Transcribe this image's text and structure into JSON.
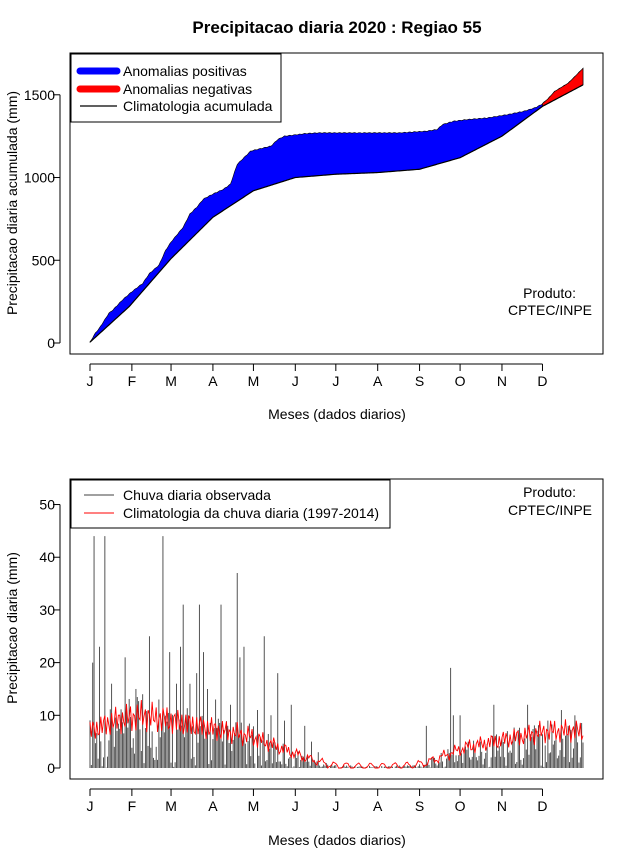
{
  "title": "Precipitacao diaria 2020 : Regiao 55",
  "chart_data": [
    {
      "type": "area",
      "id": "accumulated",
      "xlabel": "Meses (dados diarios)",
      "ylabel": "Precipitacao diaria acumulada (mm)",
      "months": [
        "J",
        "F",
        "M",
        "A",
        "M",
        "J",
        "J",
        "A",
        "S",
        "O",
        "N",
        "D"
      ],
      "month_start_days": [
        1,
        32,
        61,
        92,
        122,
        153,
        183,
        214,
        245,
        275,
        306,
        336
      ],
      "xlim": [
        1,
        366
      ],
      "ylim": [
        0,
        1680
      ],
      "yticks": [
        0,
        500,
        1000,
        1500
      ],
      "legend": {
        "position": "top-left",
        "entries": [
          "Anomalias positivas",
          "Anomalias negativas",
          "Climatologia acumulada"
        ],
        "colors": [
          "#0000ff",
          "#ff0000",
          "#000000"
        ]
      },
      "annotation": [
        "Produto:",
        "CPTEC/INPE"
      ],
      "observed_cumulative_anchors": {
        "day": [
          1,
          5,
          8,
          15,
          18,
          25,
          32,
          40,
          45,
          52,
          57,
          61,
          70,
          75,
          80,
          85,
          92,
          100,
          105,
          110,
          115,
          120,
          125,
          130,
          135,
          140,
          145,
          150,
          155,
          160,
          170,
          200,
          230,
          250,
          258,
          262,
          270,
          280,
          295,
          310,
          322,
          330,
          335,
          340,
          345,
          355,
          360,
          366
        ],
        "value": [
          5,
          60,
          90,
          180,
          200,
          260,
          310,
          360,
          420,
          470,
          560,
          610,
          700,
          780,
          820,
          870,
          900,
          930,
          960,
          1080,
          1120,
          1160,
          1170,
          1180,
          1190,
          1230,
          1250,
          1255,
          1260,
          1265,
          1270,
          1270,
          1270,
          1280,
          1290,
          1320,
          1340,
          1350,
          1360,
          1380,
          1400,
          1420,
          1440,
          1475,
          1520,
          1570,
          1610,
          1660
        ]
      },
      "climatology_cumulative_anchors": {
        "day": [
          1,
          30,
          61,
          92,
          122,
          153,
          183,
          214,
          245,
          275,
          306,
          336,
          366
        ],
        "value": [
          5,
          220,
          510,
          760,
          920,
          1000,
          1020,
          1030,
          1050,
          1120,
          1250,
          1430,
          1560
        ]
      }
    },
    {
      "type": "bar",
      "id": "daily",
      "xlabel": "Meses (dados diarios)",
      "ylabel": "Precipitacao diaria (mm)",
      "months": [
        "J",
        "F",
        "M",
        "A",
        "M",
        "J",
        "J",
        "A",
        "S",
        "O",
        "N",
        "D"
      ],
      "month_start_days": [
        1,
        32,
        61,
        92,
        122,
        153,
        183,
        214,
        245,
        275,
        306,
        336
      ],
      "xlim": [
        1,
        366
      ],
      "ylim": [
        0,
        52
      ],
      "yticks": [
        0,
        10,
        20,
        30,
        40,
        50
      ],
      "legend": {
        "position": "top-left",
        "entries": [
          "Chuva diaria observada",
          "Climatologia da chuva diaria (1997-2014)"
        ],
        "colors": [
          "#404040",
          "#ff0000"
        ]
      },
      "annotation": [
        "Produto:",
        "CPTEC/INPE"
      ],
      "observed_peaks": {
        "day": [
          3,
          4,
          8,
          12,
          17,
          27,
          35,
          40,
          45,
          52,
          55,
          60,
          65,
          68,
          70,
          75,
          80,
          82,
          85,
          88,
          94,
          98,
          105,
          110,
          112,
          115,
          125,
          130,
          135,
          140,
          145,
          150,
          160,
          165,
          170,
          250,
          268,
          270,
          275,
          290,
          300,
          310,
          325,
          340,
          350,
          355,
          360
        ],
        "value": [
          20,
          44,
          23,
          44,
          16,
          21,
          15,
          14,
          25,
          13,
          44,
          22,
          16,
          23,
          31,
          16,
          18,
          31,
          22,
          15,
          13,
          31,
          12,
          37,
          21,
          23,
          11,
          25,
          10,
          18,
          9,
          12,
          8,
          5,
          3,
          8,
          19,
          10,
          10,
          5,
          12,
          7,
          12,
          9,
          11,
          8,
          10
        ]
      },
      "climatology_anchors": {
        "day": [
          1,
          20,
          40,
          60,
          80,
          100,
          120,
          140,
          160,
          180,
          200,
          220,
          240,
          250,
          260,
          280,
          300,
          320,
          340,
          366
        ],
        "value": [
          7,
          9,
          10,
          9,
          8,
          7,
          6,
          4,
          2,
          0.5,
          0.3,
          0.3,
          0.5,
          1,
          2,
          4,
          5,
          6,
          7,
          7
        ]
      }
    }
  ]
}
